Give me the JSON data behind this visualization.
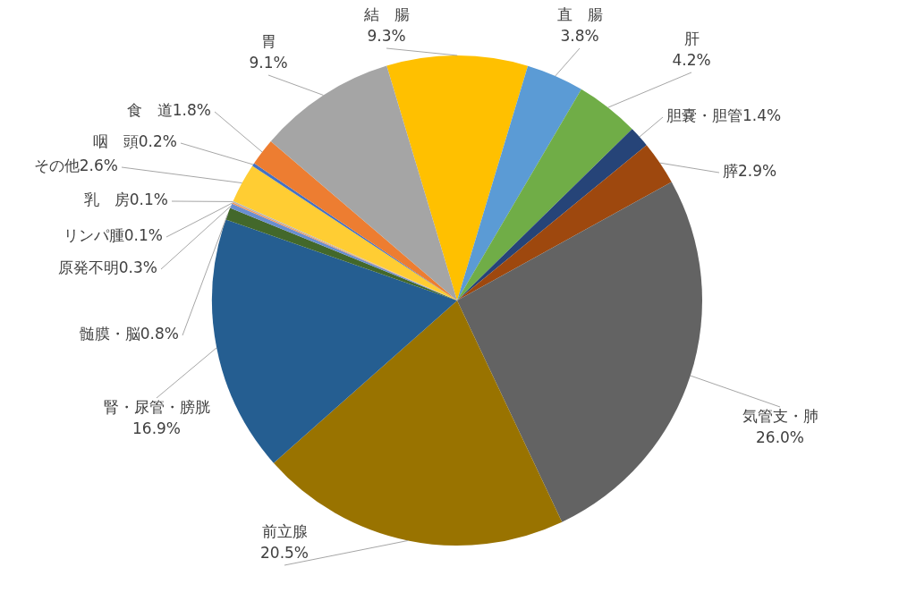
{
  "chart_data": {
    "type": "pie",
    "categories": [
      "結　腸",
      "直　腸",
      "肝",
      "胆嚢・胆管",
      "膵",
      "気管支・肺",
      "前立腺",
      "腎・尿管・膀胱",
      "髄膜・脳",
      "原発不明",
      "リンパ腫",
      "乳　房",
      "その他",
      "咽　頭",
      "食　道",
      "胃"
    ],
    "values": [
      9.3,
      3.8,
      4.2,
      1.4,
      2.9,
      26.0,
      20.5,
      16.9,
      0.8,
      0.3,
      0.1,
      0.1,
      2.6,
      0.2,
      1.8,
      9.1
    ],
    "colors": [
      "#ffc000",
      "#5b9bd5",
      "#70ad47",
      "#264478",
      "#9e480e",
      "#636363",
      "#997300",
      "#255e91",
      "#43682b",
      "#698ed0",
      "#f1975a",
      "#b7b7b7",
      "#ffcd33",
      "#4472c4",
      "#ed7d31",
      "#a5a5a5"
    ],
    "value_labels": [
      "9.3%",
      "3.8%",
      "4.2%",
      "1.4%",
      "2.9%",
      "26.0%",
      "20.5%",
      "16.9%",
      "0.8%",
      "0.3%",
      "0.1%",
      "0.1%",
      "2.6%",
      "0.2%",
      "1.8%",
      "9.1%"
    ],
    "legend": false
  }
}
